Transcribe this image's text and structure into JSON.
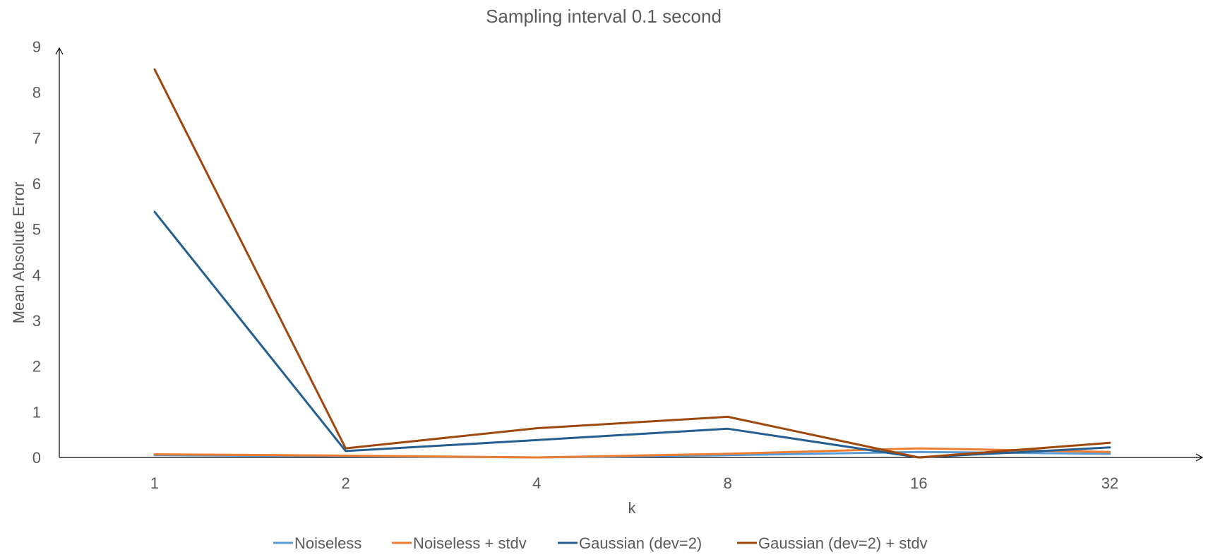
{
  "chart_data": {
    "type": "line",
    "title": "Sampling interval 0.1 second",
    "xlabel": "k",
    "ylabel": "Mean Absolute Error",
    "categories": [
      "1",
      "2",
      "4",
      "8",
      "16",
      "32"
    ],
    "yticks": [
      "0",
      "1",
      "2",
      "3",
      "4",
      "5",
      "6",
      "7",
      "8",
      "9"
    ],
    "ylim": [
      0,
      9
    ],
    "grid": false,
    "legend_position": "bottom",
    "series": [
      {
        "name": "Noiseless",
        "color": "#5B9BD5",
        "values": [
          0.05,
          0.03,
          0.0,
          0.05,
          0.12,
          0.08
        ]
      },
      {
        "name": "Noiseless + stdv",
        "color": "#ED7D31",
        "values": [
          0.07,
          0.04,
          0.0,
          0.08,
          0.2,
          0.12
        ]
      },
      {
        "name": "Gaussian (dev=2)",
        "color": "#255E91",
        "values": [
          5.38,
          0.14,
          0.38,
          0.63,
          0.0,
          0.22
        ]
      },
      {
        "name": "Gaussian (dev=2) + stdv",
        "color": "#9E480E",
        "values": [
          8.5,
          0.2,
          0.64,
          0.89,
          0.0,
          0.32
        ]
      }
    ]
  }
}
